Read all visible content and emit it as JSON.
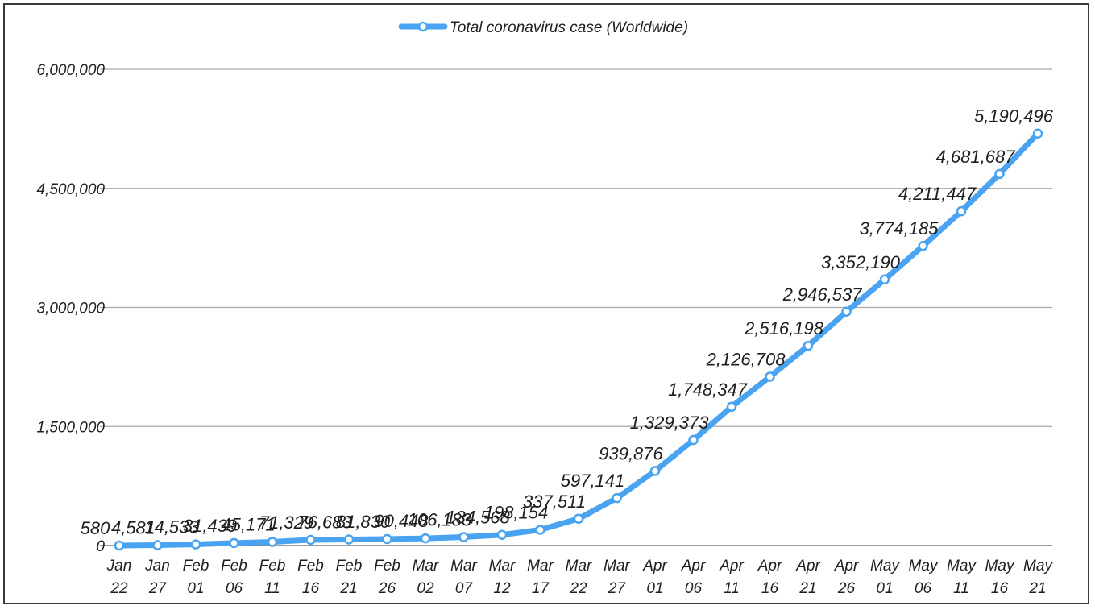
{
  "chart_data": {
    "type": "line",
    "legend": {
      "position": "top-center"
    },
    "grid": true,
    "ylim": [
      0,
      6000000
    ],
    "y_ticks": [
      "0",
      "1,500,000",
      "3,000,000",
      "4,500,000",
      "6,000,000"
    ],
    "y_tick_values": [
      0,
      1500000,
      3000000,
      4500000,
      6000000
    ],
    "categories": [
      [
        "Jan",
        "22"
      ],
      [
        "Jan",
        "27"
      ],
      [
        "Feb",
        "01"
      ],
      [
        "Feb",
        "06"
      ],
      [
        "Feb",
        "11"
      ],
      [
        "Feb",
        "16"
      ],
      [
        "Feb",
        "21"
      ],
      [
        "Feb",
        "26"
      ],
      [
        "Mar",
        "02"
      ],
      [
        "Mar",
        "07"
      ],
      [
        "Mar",
        "12"
      ],
      [
        "Mar",
        "17"
      ],
      [
        "Mar",
        "22"
      ],
      [
        "Mar",
        "27"
      ],
      [
        "Apr",
        "01"
      ],
      [
        "Apr",
        "06"
      ],
      [
        "Apr",
        "11"
      ],
      [
        "Apr",
        "16"
      ],
      [
        "Apr",
        "21"
      ],
      [
        "Apr",
        "26"
      ],
      [
        "May",
        "01"
      ],
      [
        "May",
        "06"
      ],
      [
        "May",
        "11"
      ],
      [
        "May",
        "16"
      ],
      [
        "May",
        "21"
      ]
    ],
    "series": [
      {
        "name": "Total coronavirus case (Worldwide)",
        "color": "#4aa3f0",
        "values": [
          580,
          4581,
          14533,
          31439,
          45171,
          71329,
          76683,
          81830,
          90448,
          106183,
          134568,
          198154,
          337511,
          597141,
          939876,
          1329373,
          1748347,
          2126708,
          2516198,
          2946537,
          3352190,
          3774185,
          4211447,
          4681687,
          5190496
        ],
        "labels": [
          "580",
          "4,581",
          "14,533",
          "31,439",
          "45,171",
          "71,329",
          "76,683",
          "81,830",
          "90,448",
          "106,183",
          "134,568",
          "198,154",
          "337,511",
          "597,141",
          "939,876",
          "1,329,373",
          "1,748,347",
          "2,126,708",
          "2,516,198",
          "2,946,537",
          "3,352,190",
          "3,774,185",
          "4,211,447",
          "4,681,687",
          "5,190,496"
        ]
      }
    ]
  }
}
